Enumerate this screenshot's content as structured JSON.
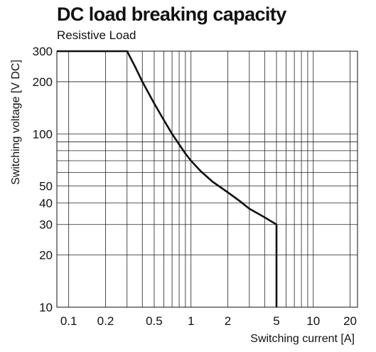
{
  "header": {
    "title": "DC load breaking capacity",
    "subtitle": "Resistive Load"
  },
  "chart_data": {
    "type": "line",
    "title": "DC load breaking capacity",
    "subtitle": "Resistive Load",
    "xlabel": "Switching current [A]",
    "ylabel": "Switching voltage [V DC]",
    "x_scale": "log",
    "y_scale": "log",
    "xlim": [
      0.08,
      23
    ],
    "ylim": [
      10,
      300
    ],
    "grid": true,
    "x_ticks": [
      0.1,
      0.2,
      0.5,
      1,
      2,
      5,
      10,
      20
    ],
    "x_tick_labels": [
      "0.1",
      "0.2",
      "0.5",
      "1",
      "2",
      "5",
      "10",
      "20"
    ],
    "y_ticks": [
      10,
      20,
      30,
      40,
      50,
      100,
      200,
      300
    ],
    "y_tick_labels": [
      "10",
      "20",
      "30",
      "40",
      "50",
      "100",
      "200",
      "300"
    ],
    "x_grid": [
      0.1,
      0.2,
      0.3,
      0.4,
      0.5,
      0.6,
      0.7,
      0.8,
      0.9,
      1,
      2,
      3,
      4,
      5,
      6,
      7,
      8,
      9,
      10,
      20
    ],
    "y_grid": [
      10,
      20,
      30,
      40,
      50,
      60,
      70,
      80,
      90,
      100,
      200,
      300
    ],
    "series": [
      {
        "x": [
          0.08,
          0.3,
          0.35,
          0.4,
          0.5,
          0.6,
          0.7,
          0.8,
          0.9,
          1,
          1.2,
          1.5,
          2,
          2.5,
          3,
          4,
          5,
          5
        ],
        "y": [
          300,
          300,
          243,
          200,
          150,
          120,
          100,
          87,
          77,
          70,
          61,
          53,
          46,
          41,
          37,
          33,
          30,
          10
        ]
      }
    ]
  }
}
